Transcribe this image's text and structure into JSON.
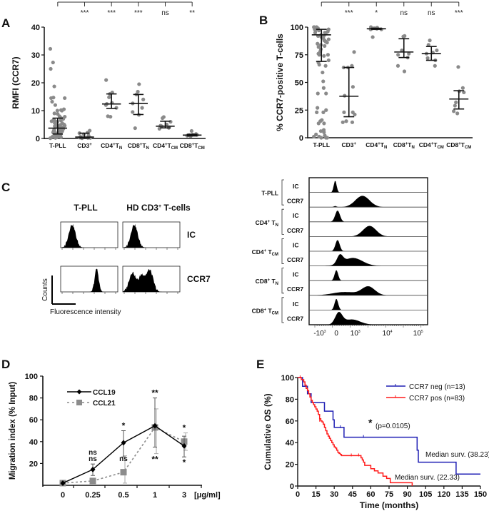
{
  "chart_data": [
    {
      "id": "A",
      "panel_label": "A",
      "type": "scatter",
      "ylabel": "RMFI (CCR7)",
      "ylim": [
        0,
        40
      ],
      "yticks": [
        0,
        10,
        20,
        30,
        40
      ],
      "categories": [
        "T-PLL",
        "CD3+",
        "CD4+TN",
        "CD8+TN",
        "CD4+TCM",
        "CD8+TCM"
      ],
      "category_labels": [
        {
          "main": "T-PLL",
          "sup": "",
          "sub": ""
        },
        {
          "main": "CD3",
          "sup": "+",
          "sub": ""
        },
        {
          "main": "CD4",
          "sup": "+",
          "sub": "N",
          "mid": "T"
        },
        {
          "main": "CD8",
          "sup": "+",
          "sub": "N",
          "mid": "T"
        },
        {
          "main": "CD4",
          "sup": "+",
          "sub": "CM",
          "mid": "T"
        },
        {
          "main": "CD8",
          "sup": "+",
          "sub": "CM",
          "mid": "T"
        }
      ],
      "significance": [
        "***",
        "***",
        "***",
        "ns",
        "**"
      ],
      "summary": [
        {
          "median": 3.7,
          "low": 1.6,
          "high": 7.3
        },
        {
          "median": 0.5,
          "low": 0.1,
          "high": 1.9
        },
        {
          "median": 12.4,
          "low": 10.8,
          "high": 16.0
        },
        {
          "median": 12.6,
          "low": 8.6,
          "high": 15.8
        },
        {
          "median": 4.4,
          "low": 3.8,
          "high": 6.2
        },
        {
          "median": 1.2,
          "low": 0.9,
          "high": 1.5
        }
      ],
      "points": [
        [
          32.2,
          27.3,
          25.0,
          18.7,
          14.7,
          14.5,
          14.5,
          13.2,
          12.0,
          10.5,
          10.2,
          10.0,
          10.0,
          9.0,
          8.8,
          8.0,
          7.8,
          7.5,
          7.2,
          7.0,
          6.8,
          6.5,
          6.3,
          6.0,
          5.8,
          5.5,
          5.3,
          5.0,
          4.8,
          4.6,
          4.4,
          4.2,
          4.0,
          3.8,
          3.6,
          3.4,
          3.2,
          3.0,
          2.8,
          2.6,
          2.4,
          2.2,
          2.0,
          1.8,
          1.6,
          1.4,
          1.2,
          1.0,
          0.8,
          0.6,
          0.4,
          0.2,
          0.1,
          3.5,
          4.5,
          5.5,
          2.5,
          1.5,
          0.5,
          6.2,
          3.0,
          2.0
        ],
        [
          2.8,
          2.1,
          1.9,
          1.5,
          1.0,
          0.6,
          0.4,
          0.3,
          0.2,
          0.1,
          0.2
        ],
        [
          21.0,
          16.5,
          16.0,
          14.8,
          12.8,
          12.4,
          12.0,
          11.0,
          8.0,
          7.8
        ],
        [
          19.5,
          16.8,
          15.8,
          14.0,
          12.6,
          11.0,
          9.5,
          8.5,
          3.7
        ],
        [
          7.7,
          7.3,
          6.0,
          5.0,
          4.6,
          4.4,
          4.0,
          3.8,
          3.5
        ],
        [
          2.7,
          1.6,
          1.4,
          1.3,
          1.2,
          1.1,
          1.0,
          0.8
        ]
      ]
    },
    {
      "id": "B",
      "panel_label": "B",
      "type": "scatter",
      "ylabel": "% CCR7-positive T-cells",
      "ylim": [
        0,
        100
      ],
      "yticks": [
        0,
        25,
        50,
        75,
        100
      ],
      "categories": [
        "T-PLL",
        "CD3+",
        "CD4+TN",
        "CD8+TN",
        "CD4+TCM",
        "CD8+TCM"
      ],
      "category_labels": [
        {
          "main": "T-PLL",
          "sup": "",
          "sub": ""
        },
        {
          "main": "CD3",
          "sup": "+",
          "sub": ""
        },
        {
          "main": "CD4",
          "sup": "+",
          "sub": "N",
          "mid": "T"
        },
        {
          "main": "CD8",
          "sup": "+",
          "sub": "N",
          "mid": "T"
        },
        {
          "main": "CD4",
          "sup": "+",
          "sub": "CM",
          "mid": "T"
        },
        {
          "main": "CD8",
          "sup": "+",
          "sub": "CM",
          "mid": "T"
        }
      ],
      "significance": [
        "***",
        "*",
        "ns",
        "ns",
        "***"
      ],
      "summary": [
        {
          "median": 93,
          "low": 69,
          "high": 98
        },
        {
          "median": 37.5,
          "low": 19,
          "high": 63.5
        },
        {
          "median": 98.5,
          "low": 98,
          "high": 99
        },
        {
          "median": 77.5,
          "low": 72.5,
          "high": 89.5
        },
        {
          "median": 76,
          "low": 70,
          "high": 82.5
        },
        {
          "median": 35,
          "low": 26,
          "high": 42.5
        }
      ],
      "points": [
        [
          100,
          100,
          100,
          99,
          99,
          98,
          98,
          97,
          97,
          96,
          95,
          94,
          93,
          92,
          91,
          90,
          89,
          88,
          87,
          86,
          85,
          83,
          82,
          80,
          78,
          76,
          75,
          75,
          74,
          70,
          68,
          66,
          65,
          59,
          51,
          45,
          40,
          40,
          27,
          25,
          23,
          23,
          16,
          15,
          13,
          13,
          7,
          6,
          5,
          3,
          2,
          1,
          1,
          0,
          0,
          0,
          92,
          88,
          84,
          95
        ],
        [
          77.5,
          65,
          63.5,
          63.5,
          46,
          38,
          23,
          23,
          21,
          15,
          14,
          14
        ],
        [
          100,
          99.5,
          99,
          99,
          98.5,
          98.5,
          98,
          98,
          91
        ],
        [
          92,
          91.5,
          79,
          76,
          75,
          72.5,
          65,
          60
        ],
        [
          88,
          84,
          79,
          77,
          76,
          72,
          70,
          65
        ],
        [
          64,
          45,
          42,
          41,
          32,
          29,
          24,
          22
        ]
      ]
    },
    {
      "id": "C-left",
      "panel_label": "C",
      "type": "histogram",
      "column_headers": [
        "T-PLL",
        "HD CD3+ T-cells"
      ],
      "column_header_sup": [
        "",
        "+"
      ],
      "row_labels": [
        "IC",
        "CCR7"
      ],
      "scale_bar": {
        "ylabel": "Counts",
        "xlabel": "Fluorescence intensity"
      },
      "histograms": [
        {
          "col": 0,
          "row": 0,
          "peaks": [
            {
              "center": 0.2,
              "width": 0.06,
              "height": 0.95
            }
          ]
        },
        {
          "col": 1,
          "row": 0,
          "peaks": [
            {
              "center": 0.2,
              "width": 0.06,
              "height": 0.95
            }
          ]
        },
        {
          "col": 0,
          "row": 1,
          "peaks": [
            {
              "center": 0.63,
              "width": 0.035,
              "height": 0.95
            }
          ]
        },
        {
          "col": 1,
          "row": 1,
          "peaks": [
            {
              "center": 0.17,
              "width": 0.06,
              "height": 0.8
            },
            {
              "center": 0.33,
              "width": 0.05,
              "height": 0.65
            },
            {
              "center": 0.47,
              "width": 0.06,
              "height": 0.9
            }
          ]
        }
      ]
    },
    {
      "id": "C-right",
      "type": "histogram",
      "groups": [
        {
          "label": "T-PLL",
          "sup": "",
          "sub": ""
        },
        {
          "label": "CD4",
          "sup": "+",
          "mid": " T",
          "sub": "N"
        },
        {
          "label": "CD4",
          "sup": "+",
          "mid": " T",
          "sub": "CM"
        },
        {
          "label": "CD8",
          "sup": "+",
          "mid": " T",
          "sub": "N"
        },
        {
          "label": "CD8",
          "sup": "+",
          "mid": " T",
          "sub": "CM"
        }
      ],
      "row_labels": [
        "IC",
        "CCR7"
      ],
      "x_ticks": [
        "-10³",
        "0",
        "10³",
        "10⁴",
        "10⁵"
      ],
      "x_tick_parts": [
        {
          "base": "-10",
          "exp": "3"
        },
        {
          "base": "0",
          "exp": ""
        },
        {
          "base": "10",
          "exp": "3"
        },
        {
          "base": "10",
          "exp": "4"
        },
        {
          "base": "10",
          "exp": "5"
        }
      ],
      "histograms": [
        [
          {
            "center": 0.22,
            "width": 0.012,
            "height": 0.9
          }
        ],
        [
          {
            "center": 0.45,
            "width": 0.06,
            "height": 0.85
          },
          {
            "center": 0.22,
            "width": 0.012,
            "height": 0.08
          }
        ],
        [
          {
            "center": 0.24,
            "width": 0.02,
            "height": 0.85
          }
        ],
        [
          {
            "center": 0.51,
            "width": 0.055,
            "height": 0.8
          }
        ],
        [
          {
            "center": 0.24,
            "width": 0.018,
            "height": 0.85
          }
        ],
        [
          {
            "center": 0.26,
            "width": 0.025,
            "height": 0.65
          },
          {
            "center": 0.37,
            "width": 0.08,
            "height": 0.6
          }
        ],
        [
          {
            "center": 0.23,
            "width": 0.015,
            "height": 0.8
          }
        ],
        [
          {
            "center": 0.3,
            "width": 0.1,
            "height": 0.25
          },
          {
            "center": 0.5,
            "width": 0.055,
            "height": 0.65
          }
        ],
        [
          {
            "center": 0.23,
            "width": 0.015,
            "height": 0.85
          }
        ],
        [
          {
            "center": 0.25,
            "width": 0.03,
            "height": 0.85
          },
          {
            "center": 0.36,
            "width": 0.07,
            "height": 0.4
          }
        ]
      ]
    },
    {
      "id": "D",
      "panel_label": "D",
      "type": "line",
      "ylabel": "Migration index (% Input)",
      "xlabel_unit": "[μg/ml]",
      "x_categories": [
        "0",
        "0.25",
        "0.5",
        "1",
        "3"
      ],
      "ylim": [
        0,
        100
      ],
      "yticks": [
        20,
        40,
        60,
        80,
        100
      ],
      "series": [
        {
          "name": "CCL19",
          "style": "solid",
          "marker": "diamond",
          "color": "#000000",
          "values": [
            2,
            14.5,
            39,
            54.5,
            36
          ],
          "err_low": [
            0,
            9,
            26,
            35,
            26
          ],
          "err_high": [
            0,
            19.5,
            50,
            80,
            45
          ]
        },
        {
          "name": "CCL21",
          "style": "dashed",
          "marker": "square",
          "color": "#8c8c8c",
          "values": [
            2,
            4,
            12,
            53,
            40
          ],
          "err_low": [
            0,
            0,
            2,
            29,
            32
          ],
          "err_high": [
            0,
            0,
            27,
            70,
            48
          ]
        }
      ],
      "annotations": [
        {
          "x": 1,
          "above": "ns",
          "above2": "ns"
        },
        {
          "x": 2,
          "above": "*",
          "below": "ns"
        },
        {
          "x": 3,
          "above": "**",
          "below": "**"
        },
        {
          "x": 4,
          "above": "*",
          "below": "*"
        }
      ]
    },
    {
      "id": "E",
      "panel_label": "E",
      "type": "line",
      "subtype": "kaplan-meier",
      "xlabel": "Time (months)",
      "ylabel": "Cumulative OS (%)",
      "xlim": [
        0,
        150
      ],
      "ylim": [
        0,
        100
      ],
      "xticks": [
        0,
        15,
        30,
        45,
        60,
        75,
        90,
        105,
        120,
        135,
        150
      ],
      "yticks": [
        0,
        20,
        40,
        60,
        80,
        100
      ],
      "pvalue_text": "(p=0.0105)",
      "pvalue_star": "*",
      "series": [
        {
          "name": "CCR7 neg (n=13)",
          "color": "#1f1fb4",
          "median_label": "Median surv. (38.23)",
          "steps": [
            [
              0,
              100
            ],
            [
              4,
              100
            ],
            [
              4,
              92
            ],
            [
              8,
              92
            ],
            [
              8,
              85
            ],
            [
              11,
              85
            ],
            [
              11,
              77
            ],
            [
              22,
              77
            ],
            [
              22,
              69
            ],
            [
              29,
              69
            ],
            [
              29,
              61
            ],
            [
              30,
              61
            ],
            [
              30,
              54
            ],
            [
              38,
              54
            ],
            [
              38,
              45
            ],
            [
              98,
              45
            ],
            [
              98,
              33
            ],
            [
              99,
              33
            ],
            [
              99,
              22
            ],
            [
              130,
              22
            ],
            [
              130,
              11
            ],
            [
              150,
              11
            ]
          ],
          "censors": [
            [
              35,
              54
            ],
            [
              54,
              45
            ]
          ]
        },
        {
          "name": "CCR7 pos (n=83)",
          "color": "#ff1a1a",
          "median_label": "Median surv. (22.33)",
          "steps": [
            [
              0,
              100
            ],
            [
              2,
              100
            ],
            [
              3,
              98
            ],
            [
              5,
              96
            ],
            [
              6,
              93
            ],
            [
              7,
              90
            ],
            [
              8,
              88
            ],
            [
              9,
              85
            ],
            [
              10,
              82
            ],
            [
              11,
              79
            ],
            [
              12,
              77
            ],
            [
              13,
              75
            ],
            [
              14,
              73
            ],
            [
              15,
              71
            ],
            [
              16,
              69
            ],
            [
              17,
              66
            ],
            [
              18,
              62
            ],
            [
              19,
              60
            ],
            [
              20,
              59
            ],
            [
              21,
              57
            ],
            [
              22,
              54
            ],
            [
              23,
              51
            ],
            [
              24,
              48
            ],
            [
              25,
              46
            ],
            [
              26,
              44
            ],
            [
              27,
              42
            ],
            [
              28,
              40
            ],
            [
              29,
              38
            ],
            [
              30,
              36
            ],
            [
              31,
              35
            ],
            [
              32,
              33
            ],
            [
              33,
              31
            ],
            [
              34,
              30
            ],
            [
              35,
              29
            ],
            [
              36,
              28
            ],
            [
              51,
              28
            ],
            [
              52,
              26
            ],
            [
              53,
              24
            ],
            [
              54,
              22
            ],
            [
              55,
              19
            ],
            [
              60,
              19
            ],
            [
              60,
              16
            ],
            [
              63,
              16
            ],
            [
              63,
              14
            ],
            [
              66,
              14
            ],
            [
              66,
              12
            ],
            [
              70,
              12
            ],
            [
              70,
              9
            ],
            [
              73,
              9
            ],
            [
              73,
              7
            ],
            [
              76,
              7
            ],
            [
              76,
              3
            ],
            [
              94,
              3
            ],
            [
              94,
              0
            ]
          ],
          "censors": [
            [
              2,
              100
            ],
            [
              18,
              60
            ],
            [
              22,
              55
            ],
            [
              44,
              28
            ],
            [
              50,
              28
            ]
          ]
        }
      ]
    }
  ]
}
